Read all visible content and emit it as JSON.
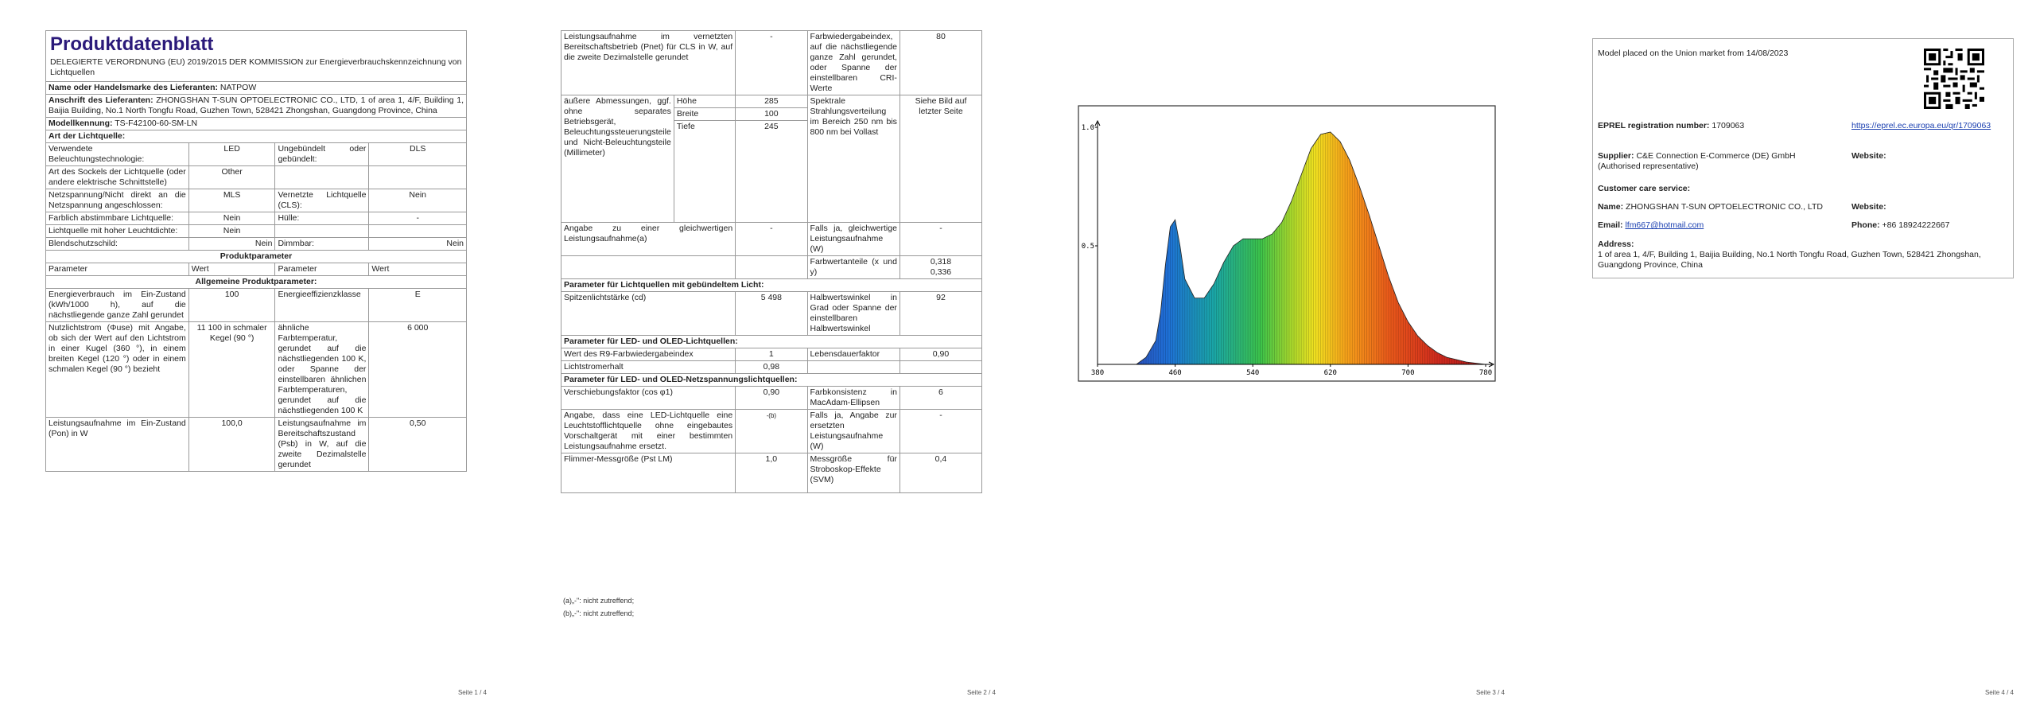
{
  "page1": {
    "title": "Produktdatenblatt",
    "regulation": "DELEGIERTE VERORDNUNG (EU) 2019/2015 DER KOMMISSION zur Energieverbrauchskennzeichnung von Lichtquellen",
    "supplier_name_label": "Name oder Handelsmarke des Lieferanten:",
    "supplier_name": "NATPOW",
    "supplier_address_label": "Anschrift des Lieferanten:",
    "supplier_address": "ZHONGSHAN T-SUN OPTOELECTRONIC CO., LTD, 1 of area 1, 4/F, Building 1, Baijia Building, No.1 North Tongfu Road, Guzhen Town, 528421 Zhongshan, Guangdong Province, China",
    "model_label": "Modellkennung:",
    "model": "TS-F42100-60-SM-LN",
    "lightsource_type_header": "Art der Lichtquelle:",
    "rows_type": [
      {
        "p1": "Verwendete Beleuchtungstechnologie:",
        "v1": "LED",
        "p2": "Ungebündelt oder gebündelt:",
        "v2": "DLS"
      },
      {
        "p1": "Art des Sockels der Lichtquelle (oder andere elektrische Schnittstelle)",
        "v1": "Other",
        "p2": "",
        "v2": ""
      },
      {
        "p1": "Netzspannung/Nicht direkt an die Netzspannung angeschlossen:",
        "v1": "MLS",
        "p2": "Vernetzte Lichtquelle (CLS):",
        "v2": "Nein"
      },
      {
        "p1": "Farblich abstimmbare Lichtquelle:",
        "v1": "Nein",
        "p2": "Hülle:",
        "v2": "-"
      },
      {
        "p1": "Lichtquelle mit hoher Leuchtdichte:",
        "v1": "Nein",
        "p2": "",
        "v2": ""
      },
      {
        "p1": "Blendschutzschild:",
        "v1": "Nein",
        "p2": "Dimmbar:",
        "v2": "Nein"
      }
    ],
    "product_params_header": "Produktparameter",
    "col_parameter": "Parameter",
    "col_value": "Wert",
    "general_params_header": "Allgemeine Produktparameter:",
    "rows_general": [
      {
        "p1": "Energieverbrauch im Ein-Zustand (kWh/1000 h), auf die nächstliegende ganze Zahl gerundet",
        "v1": "100",
        "p2": "Energieeffizienzklasse",
        "v2": "E"
      },
      {
        "p1": "Nutzlichtstrom (Φuse) mit Angabe, ob sich der Wert auf den Lichtstrom in einer Kugel (360 °), in einem breiten Kegel (120 °) oder in einem schmalen Kegel (90 °) bezieht",
        "v1": "11 100 in schmaler Kegel (90 °)",
        "p2": "ähnliche Farbtemperatur, gerundet auf die nächstliegenden 100 K, oder Spanne der einstellbaren ähnlichen Farbtemperaturen, gerundet auf die nächstliegenden 100 K",
        "v2": "6 000"
      },
      {
        "p1": "Leistungsaufnahme im Ein-Zustand (Pon) in W",
        "v1": "100,0",
        "p2": "Leistungsaufnahme im Bereitschaftszustand (Psb) in W, auf die zweite Dezimalstelle gerundet",
        "v2": "0,50"
      }
    ],
    "page_num": "Seite 1 / 4"
  },
  "page2": {
    "r1": {
      "p1": "Leistungsaufnahme im vernetzten Bereitschaftsbetrieb (Pnet) für CLS in W, auf die zweite Dezimalstelle gerundet",
      "v1": "-",
      "p2": "Farbwiedergabeindex, auf die nächstliegende ganze Zahl gerundet, oder Spanne der einstellbaren CRI-Werte",
      "v2": "80"
    },
    "dim": {
      "p1": "äußere Abmessungen, ggf. ohne separates Betriebsgerät, Beleuchtungssteuerungsteile und Nicht-Beleuchtungsteile (Millimeter)",
      "h_label": "Höhe",
      "h": "285",
      "b_label": "Breite",
      "b": "100",
      "t_label": "Tiefe",
      "t": "245",
      "p2": "Spektrale Strahlungsverteilung im Bereich 250 nm bis 800 nm bei Vollast",
      "v2": "Siehe Bild auf letzter Seite"
    },
    "r3": {
      "p1": "Angabe zu einer gleichwertigen Leistungsaufnahme(a)",
      "v1": "-",
      "p2": "Falls ja, gleichwertige Leistungsaufnahme (W)",
      "v2": "-"
    },
    "r4": {
      "p2": "Farbwertanteile (x und y)",
      "v2": "0,318\n0,336"
    },
    "directional_header": "Parameter für Lichtquellen mit gebündeltem Licht:",
    "r5": {
      "p1": "Spitzenlichtstärke (cd)",
      "v1": "5 498",
      "p2": "Halbwertswinkel in Grad oder Spanne der einstellbaren Halbwertswinkel",
      "v2": "92"
    },
    "led_header": "Parameter für LED- und OLED-Lichtquellen:",
    "r6": {
      "p1": "Wert des R9-Farbwiedergabeindex",
      "v1": "1",
      "p2": "Lebensdauerfaktor",
      "v2": "0,90"
    },
    "r7": {
      "p1": "Lichtstromerhalt",
      "v1": "0,98"
    },
    "mains_header": "Parameter für LED- und OLED-Netzspannungslichtquellen:",
    "r8": {
      "p1": "Verschiebungsfaktor (cos φ1)",
      "v1": "0,90",
      "p2": "Farbkonsistenz in MacAdam-Ellipsen",
      "v2": "6"
    },
    "r9": {
      "p1": "Angabe, dass eine LED-Lichtquelle eine Leuchtstofflichtquelle ohne eingebautes Vorschaltgerät mit einer bestimmten Leistungsaufnahme ersetzt.",
      "v1": "-(b)",
      "p2": "Falls ja, Angabe zur ersetzten Leistungsaufnahme (W)",
      "v2": "-"
    },
    "r10": {
      "p1": "Flimmer-Messgröße (Pst LM)",
      "v1": "1,0",
      "p2": "Messgröße für Stroboskop-Effekte (SVM)",
      "v2": "0,4"
    },
    "fn_a": "(a)„-\": nicht zutreffend;",
    "fn_b": "(b)„-\": nicht zutreffend;",
    "page_num": "Seite 2 / 4"
  },
  "page3": {
    "chart_data": {
      "type": "area",
      "title": "",
      "xlabel": "",
      "ylabel": "",
      "xlim": [
        380,
        780
      ],
      "ylim": [
        0,
        1.0
      ],
      "x_ticks": [
        "380",
        "460",
        "540",
        "620",
        "700",
        "780"
      ],
      "y_ticks": [
        "0.5",
        "1.0"
      ],
      "series": [
        {
          "x": [
            380,
            400,
            420,
            430,
            440,
            445,
            450,
            455,
            460,
            465,
            470,
            480,
            490,
            500,
            510,
            520,
            530,
            540,
            550,
            560,
            570,
            580,
            590,
            600,
            610,
            620,
            630,
            640,
            650,
            660,
            670,
            680,
            690,
            700,
            710,
            720,
            730,
            740,
            750,
            760,
            770,
            780
          ],
          "y": [
            0.0,
            0.0,
            0.0,
            0.03,
            0.1,
            0.22,
            0.42,
            0.58,
            0.61,
            0.5,
            0.36,
            0.28,
            0.28,
            0.34,
            0.43,
            0.5,
            0.53,
            0.53,
            0.53,
            0.55,
            0.6,
            0.69,
            0.8,
            0.91,
            0.97,
            0.98,
            0.94,
            0.86,
            0.75,
            0.63,
            0.5,
            0.37,
            0.26,
            0.18,
            0.12,
            0.08,
            0.05,
            0.03,
            0.02,
            0.01,
            0.005,
            0.0
          ]
        }
      ]
    },
    "page_num": "Seite 3 / 4"
  },
  "page4": {
    "placed": "Model placed on the Union market from 14/08/2023",
    "eprel_label": "EPREL registration number:",
    "eprel": "1709063",
    "eprel_url": "https://eprel.ec.europa.eu/qr/1709063",
    "supplier_label": "Supplier:",
    "supplier": "C&E Connection E-Commerce (DE) GmbH (Authorised representative)",
    "website_label": "Website:",
    "customer_care": "Customer care service:",
    "name_label": "Name:",
    "name": "ZHONGSHAN T-SUN OPTOELECTRONIC CO., LTD",
    "website_label2": "Website:",
    "email_label": "Email:",
    "email": "lfm667@hotmail.com",
    "phone_label": "Phone:",
    "phone": "+86 18924222667",
    "address_label": "Address:",
    "address": "1 of area 1, 4/F, Building 1, Baijia Building, No.1 North Tongfu Road, Guzhen Town, 528421 Zhongshan, Guangdong Province, China",
    "page_num": "Seite 4 / 4"
  }
}
